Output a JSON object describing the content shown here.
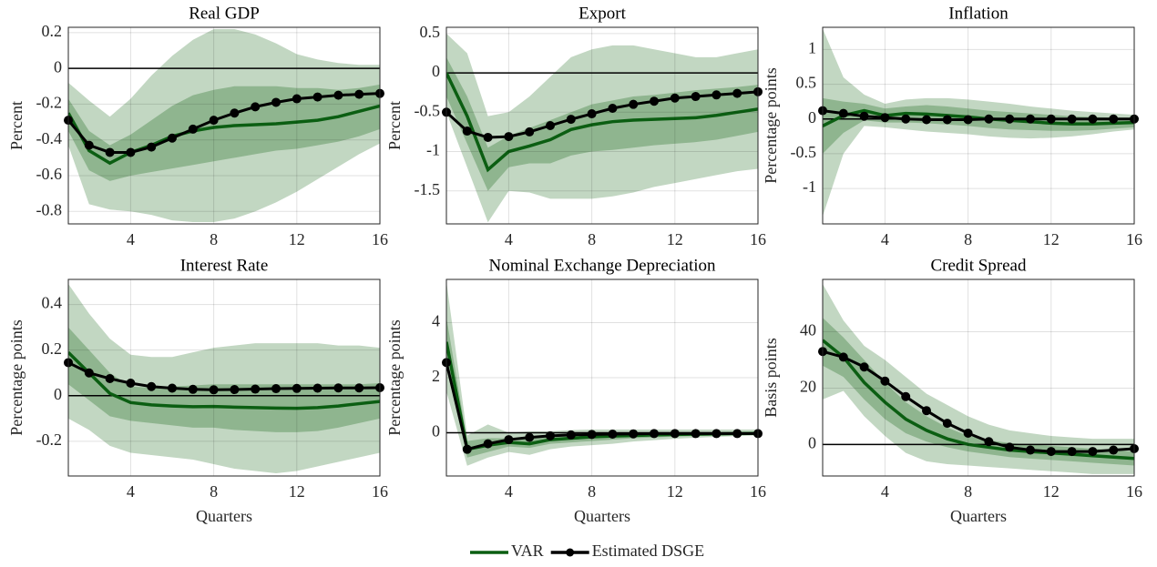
{
  "chart_data": [
    {
      "type": "line",
      "title": "Real GDP",
      "ylabel": "Percent",
      "x": [
        1,
        2,
        3,
        4,
        5,
        6,
        7,
        8,
        9,
        10,
        11,
        12,
        13,
        14,
        15,
        16
      ],
      "xlim": [
        1,
        16
      ],
      "xticks": [
        4,
        8,
        12,
        16
      ],
      "ylim": [
        -0.87,
        0.23
      ],
      "yticks": [
        -0.8,
        -0.6,
        -0.4,
        -0.2,
        0,
        0.2
      ],
      "grid": true,
      "hline": 0,
      "bands": [
        {
          "color": "#c2d7c2",
          "lower": [
            -0.43,
            -0.76,
            -0.79,
            -0.8,
            -0.82,
            -0.85,
            -0.86,
            -0.86,
            -0.84,
            -0.8,
            -0.75,
            -0.69,
            -0.62,
            -0.55,
            -0.48,
            -0.42
          ],
          "upper": [
            -0.08,
            -0.18,
            -0.27,
            -0.17,
            -0.04,
            0.07,
            0.16,
            0.22,
            0.22,
            0.19,
            0.14,
            0.08,
            0.05,
            0.03,
            0.02,
            0.02
          ]
        },
        {
          "color": "#8fb58f",
          "lower": [
            -0.35,
            -0.57,
            -0.63,
            -0.6,
            -0.58,
            -0.56,
            -0.54,
            -0.52,
            -0.5,
            -0.48,
            -0.46,
            -0.45,
            -0.43,
            -0.41,
            -0.38,
            -0.34
          ],
          "upper": [
            -0.17,
            -0.35,
            -0.43,
            -0.37,
            -0.29,
            -0.21,
            -0.15,
            -0.12,
            -0.1,
            -0.1,
            -0.1,
            -0.11,
            -0.11,
            -0.12,
            -0.11,
            -0.09
          ]
        }
      ],
      "series": [
        {
          "name": "VAR",
          "color": "#0b5e12",
          "values": [
            -0.25,
            -0.46,
            -0.53,
            -0.47,
            -0.43,
            -0.38,
            -0.35,
            -0.33,
            -0.32,
            -0.315,
            -0.31,
            -0.3,
            -0.29,
            -0.27,
            -0.24,
            -0.21
          ]
        },
        {
          "name": "Estimated DSGE",
          "color": "#000000",
          "marker": true,
          "values": [
            -0.29,
            -0.43,
            -0.47,
            -0.47,
            -0.44,
            -0.39,
            -0.34,
            -0.29,
            -0.25,
            -0.215,
            -0.19,
            -0.17,
            -0.16,
            -0.15,
            -0.145,
            -0.14
          ]
        }
      ]
    },
    {
      "type": "line",
      "title": "Export",
      "ylabel": "Percent",
      "x": [
        1,
        2,
        3,
        4,
        5,
        6,
        7,
        8,
        9,
        10,
        11,
        12,
        13,
        14,
        15,
        16
      ],
      "xlim": [
        1,
        16
      ],
      "xticks": [
        4,
        8,
        12,
        16
      ],
      "ylim": [
        -1.92,
        0.58
      ],
      "yticks": [
        -1.5,
        -1,
        -0.5,
        0,
        0.5
      ],
      "grid": true,
      "hline": 0,
      "bands": [
        {
          "color": "#c2d7c2",
          "lower": [
            -0.5,
            -1.2,
            -1.9,
            -1.5,
            -1.52,
            -1.6,
            -1.6,
            -1.6,
            -1.57,
            -1.52,
            -1.45,
            -1.4,
            -1.35,
            -1.3,
            -1.25,
            -1.22
          ],
          "upper": [
            0.5,
            0.25,
            -0.55,
            -0.5,
            -0.3,
            -0.05,
            0.2,
            0.3,
            0.35,
            0.35,
            0.3,
            0.25,
            0.2,
            0.2,
            0.25,
            0.3
          ]
        },
        {
          "color": "#8fb58f",
          "lower": [
            -0.3,
            -0.9,
            -1.5,
            -1.2,
            -1.15,
            -1.15,
            -1.05,
            -1.0,
            -0.98,
            -0.95,
            -0.92,
            -0.9,
            -0.88,
            -0.85,
            -0.8,
            -0.75
          ],
          "upper": [
            0.2,
            -0.3,
            -0.95,
            -0.8,
            -0.7,
            -0.6,
            -0.5,
            -0.4,
            -0.35,
            -0.3,
            -0.28,
            -0.25,
            -0.22,
            -0.2,
            -0.18,
            -0.15
          ]
        }
      ],
      "series": [
        {
          "name": "VAR",
          "color": "#0b5e12",
          "values": [
            0,
            -0.55,
            -1.23,
            -1.0,
            -0.93,
            -0.85,
            -0.72,
            -0.66,
            -0.62,
            -0.6,
            -0.59,
            -0.58,
            -0.57,
            -0.54,
            -0.5,
            -0.46
          ]
        },
        {
          "name": "Estimated DSGE",
          "color": "#000000",
          "marker": true,
          "values": [
            -0.5,
            -0.74,
            -0.82,
            -0.81,
            -0.75,
            -0.67,
            -0.59,
            -0.52,
            -0.45,
            -0.4,
            -0.36,
            -0.32,
            -0.3,
            -0.28,
            -0.26,
            -0.24
          ]
        }
      ]
    },
    {
      "type": "line",
      "title": "Inflation",
      "ylabel": "Percentage points",
      "x": [
        1,
        2,
        3,
        4,
        5,
        6,
        7,
        8,
        9,
        10,
        11,
        12,
        13,
        14,
        15,
        16
      ],
      "xlim": [
        1,
        16
      ],
      "xticks": [
        4,
        8,
        12,
        16
      ],
      "ylim": [
        -1.51,
        1.32
      ],
      "yticks": [
        -1,
        -0.5,
        0,
        0.5,
        1
      ],
      "grid": true,
      "hline": 0,
      "bands": [
        {
          "color": "#c2d7c2",
          "lower": [
            -1.4,
            -0.5,
            -0.1,
            -0.12,
            -0.15,
            -0.18,
            -0.2,
            -0.22,
            -0.25,
            -0.27,
            -0.28,
            -0.27,
            -0.25,
            -0.22,
            -0.18,
            -0.15
          ],
          "upper": [
            1.3,
            0.6,
            0.35,
            0.22,
            0.28,
            0.3,
            0.3,
            0.28,
            0.25,
            0.22,
            0.18,
            0.15,
            0.12,
            0.1,
            0.08,
            0.06
          ]
        },
        {
          "color": "#8fb58f",
          "lower": [
            -0.5,
            -0.2,
            -0.02,
            -0.05,
            -0.05,
            -0.06,
            -0.08,
            -0.1,
            -0.13,
            -0.15,
            -0.16,
            -0.17,
            -0.17,
            -0.16,
            -0.14,
            -0.12
          ],
          "upper": [
            0.3,
            0.25,
            0.22,
            0.15,
            0.18,
            0.2,
            0.18,
            0.15,
            0.12,
            0.1,
            0.08,
            0.06,
            0.04,
            0.03,
            0.02,
            0.02
          ]
        }
      ],
      "series": [
        {
          "name": "VAR",
          "color": "#0b5e12",
          "values": [
            -0.1,
            0.05,
            0.12,
            0.05,
            0.08,
            0.07,
            0.05,
            0.03,
            0.0,
            -0.02,
            -0.04,
            -0.06,
            -0.07,
            -0.07,
            -0.06,
            -0.05
          ]
        },
        {
          "name": "Estimated DSGE",
          "color": "#000000",
          "marker": true,
          "values": [
            0.12,
            0.08,
            0.04,
            0.02,
            0.0,
            -0.01,
            -0.01,
            -0.01,
            0,
            0,
            0,
            0,
            0,
            0,
            0,
            0
          ]
        }
      ]
    },
    {
      "type": "line",
      "title": "Interest Rate",
      "ylabel": "Percentage points",
      "xlabel": "Quarters",
      "x": [
        1,
        2,
        3,
        4,
        5,
        6,
        7,
        8,
        9,
        10,
        11,
        12,
        13,
        14,
        15,
        16
      ],
      "xlim": [
        1,
        16
      ],
      "xticks": [
        4,
        8,
        12,
        16
      ],
      "ylim": [
        -0.352,
        0.51
      ],
      "yticks": [
        -0.2,
        0,
        0.2,
        0.4
      ],
      "grid": true,
      "hline": 0,
      "bands": [
        {
          "color": "#c2d7c2",
          "lower": [
            -0.1,
            -0.15,
            -0.22,
            -0.25,
            -0.26,
            -0.27,
            -0.28,
            -0.3,
            -0.32,
            -0.33,
            -0.34,
            -0.33,
            -0.31,
            -0.29,
            -0.27,
            -0.25
          ],
          "upper": [
            0.49,
            0.36,
            0.25,
            0.18,
            0.17,
            0.17,
            0.19,
            0.21,
            0.22,
            0.23,
            0.23,
            0.23,
            0.23,
            0.22,
            0.22,
            0.21
          ]
        },
        {
          "color": "#8fb58f",
          "lower": [
            0.05,
            -0.02,
            -0.09,
            -0.11,
            -0.12,
            -0.13,
            -0.14,
            -0.14,
            -0.15,
            -0.155,
            -0.16,
            -0.16,
            -0.155,
            -0.14,
            -0.12,
            -0.1
          ],
          "upper": [
            0.3,
            0.2,
            0.1,
            0.04,
            0.035,
            0.04,
            0.045,
            0.05,
            0.05,
            0.05,
            0.05,
            0.05,
            0.05,
            0.05,
            0.05,
            0.055
          ]
        }
      ],
      "series": [
        {
          "name": "VAR",
          "color": "#0b5e12",
          "values": [
            0.19,
            0.1,
            0.01,
            -0.03,
            -0.04,
            -0.045,
            -0.048,
            -0.047,
            -0.05,
            -0.052,
            -0.054,
            -0.055,
            -0.052,
            -0.045,
            -0.035,
            -0.025
          ]
        },
        {
          "name": "Estimated DSGE",
          "color": "#000000",
          "marker": true,
          "values": [
            0.145,
            0.1,
            0.075,
            0.055,
            0.04,
            0.033,
            0.028,
            0.026,
            0.027,
            0.029,
            0.031,
            0.032,
            0.033,
            0.034,
            0.034,
            0.035
          ]
        }
      ]
    },
    {
      "type": "line",
      "title": "Nominal Exchange Depreciation",
      "ylabel": "Percentage points",
      "xlabel": "Quarters",
      "x": [
        1,
        2,
        3,
        4,
        5,
        6,
        7,
        8,
        9,
        10,
        11,
        12,
        13,
        14,
        15,
        16
      ],
      "xlim": [
        1,
        16
      ],
      "xticks": [
        4,
        8,
        12,
        16
      ],
      "ylim": [
        -1.57,
        5.57
      ],
      "yticks": [
        0,
        2,
        4
      ],
      "grid": true,
      "hline": 0,
      "bands": [
        {
          "color": "#c2d7c2",
          "lower": [
            1.5,
            -1.2,
            -0.9,
            -0.7,
            -0.8,
            -0.6,
            -0.5,
            -0.45,
            -0.4,
            -0.32,
            -0.27,
            -0.22,
            -0.18,
            -0.15,
            -0.12,
            -0.1
          ],
          "upper": [
            5.5,
            -0.1,
            0.3,
            0.0,
            0.05,
            0.05,
            0.1,
            0.12,
            0.12,
            0.12,
            0.12,
            0.12,
            0.12,
            0.12,
            0.12,
            0.12
          ]
        },
        {
          "color": "#8fb58f",
          "lower": [
            2.5,
            -0.9,
            -0.7,
            -0.5,
            -0.55,
            -0.4,
            -0.35,
            -0.3,
            -0.25,
            -0.2,
            -0.17,
            -0.14,
            -0.12,
            -0.1,
            -0.08,
            -0.07
          ],
          "upper": [
            4.2,
            -0.3,
            -0.2,
            -0.2,
            -0.2,
            -0.1,
            -0.05,
            -0.02,
            0,
            0.01,
            0.02,
            0.02,
            0.02,
            0.02,
            0.03,
            0.03
          ]
        }
      ],
      "series": [
        {
          "name": "VAR",
          "color": "#0b5e12",
          "values": [
            3.3,
            -0.6,
            -0.45,
            -0.35,
            -0.4,
            -0.25,
            -0.2,
            -0.15,
            -0.12,
            -0.1,
            -0.08,
            -0.06,
            -0.05,
            -0.04,
            -0.03,
            -0.02
          ]
        },
        {
          "name": "Estimated DSGE",
          "color": "#000000",
          "marker": true,
          "values": [
            2.55,
            -0.6,
            -0.4,
            -0.25,
            -0.17,
            -0.11,
            -0.08,
            -0.06,
            -0.05,
            -0.04,
            -0.03,
            -0.03,
            -0.03,
            -0.03,
            -0.03,
            -0.03
          ]
        }
      ]
    },
    {
      "type": "line",
      "title": "Credit Spread",
      "ylabel": "Basis points",
      "xlabel": "Quarters",
      "x": [
        1,
        2,
        3,
        4,
        5,
        6,
        7,
        8,
        9,
        10,
        11,
        12,
        13,
        14,
        15,
        16
      ],
      "xlim": [
        1,
        16
      ],
      "xticks": [
        4,
        8,
        12,
        16
      ],
      "ylim": [
        -11.2,
        58.6
      ],
      "yticks": [
        0,
        20,
        40
      ],
      "grid": true,
      "hline": 0,
      "bands": [
        {
          "color": "#c2d7c2",
          "lower": [
            16,
            19,
            10,
            3,
            -3,
            -6,
            -7,
            -7.5,
            -8,
            -8.5,
            -9,
            -9.5,
            -10,
            -10.5,
            -10.5,
            -10.5
          ],
          "upper": [
            57,
            44,
            35,
            30,
            24,
            18,
            14,
            10,
            7,
            5,
            4,
            3,
            2.5,
            2,
            2,
            2
          ]
        },
        {
          "color": "#8fb58f",
          "lower": [
            28,
            24,
            16,
            9,
            4,
            1,
            -1,
            -2.5,
            -3.5,
            -4.5,
            -5,
            -5.5,
            -6,
            -6.5,
            -7,
            -7.5
          ],
          "upper": [
            45,
            38,
            30,
            22,
            15,
            10,
            6,
            3,
            1.5,
            0.5,
            0,
            -0.5,
            -1,
            -1.5,
            -2,
            -2.5
          ]
        }
      ],
      "series": [
        {
          "name": "VAR",
          "color": "#0b5e12",
          "values": [
            37,
            31,
            22,
            15,
            9,
            5,
            2,
            0,
            -1,
            -2,
            -2.5,
            -3,
            -3.5,
            -4,
            -4.5,
            -5
          ]
        },
        {
          "name": "Estimated DSGE",
          "color": "#000000",
          "marker": true,
          "values": [
            33,
            31,
            27.5,
            22.5,
            17,
            12,
            7.5,
            4,
            1,
            -1,
            -2,
            -2.5,
            -2.5,
            -2.5,
            -2,
            -1.5
          ]
        }
      ]
    }
  ]
}
